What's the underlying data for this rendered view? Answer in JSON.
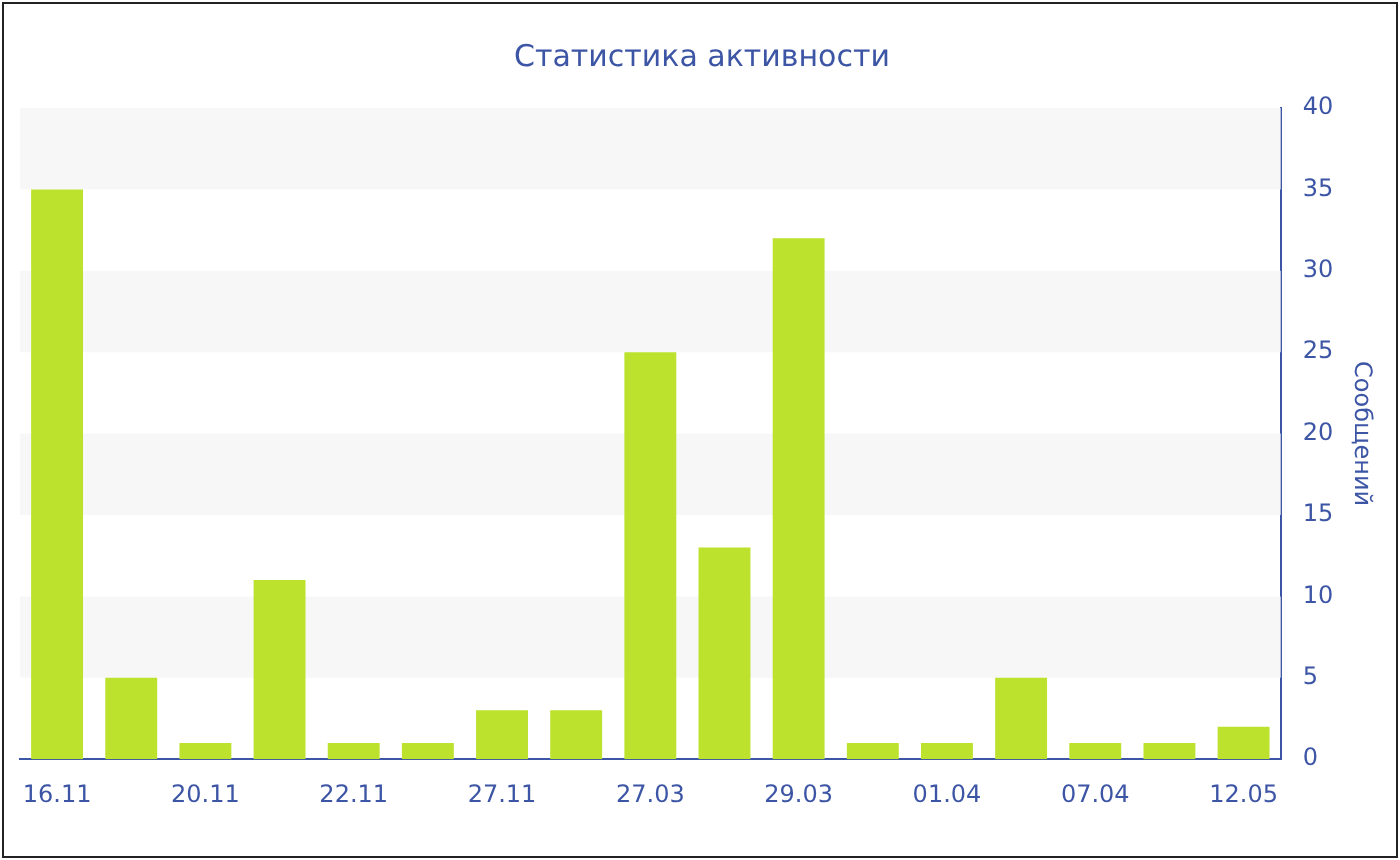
{
  "chart_data": {
    "type": "bar",
    "title": "Статистика активности",
    "ylabel": "Сообщений",
    "categories": [
      "16.11",
      null,
      "20.11",
      null,
      "22.11",
      null,
      "27.11",
      null,
      "27.03",
      null,
      "29.03",
      null,
      "01.04",
      null,
      "07.04",
      null,
      "12.05"
    ],
    "values": [
      35,
      5,
      1,
      11,
      1,
      1,
      3,
      3,
      25,
      13,
      32,
      1,
      1,
      5,
      1,
      1,
      2
    ],
    "color": "#bce22e",
    "ylim": [
      0,
      40
    ],
    "yticks": [
      0,
      5,
      10,
      15,
      20,
      25,
      30,
      35,
      40
    ],
    "legend": false,
    "bands": [
      {
        "axis": "y",
        "from": 35,
        "to": 40,
        "color": "#f7f7f7"
      },
      {
        "axis": "y",
        "from": 25,
        "to": 30,
        "color": "#f7f7f7"
      },
      {
        "axis": "y",
        "from": 15,
        "to": 20,
        "color": "#f7f7f7"
      },
      {
        "axis": "y",
        "from": 5,
        "to": 10,
        "color": "#f7f7f7"
      }
    ]
  }
}
